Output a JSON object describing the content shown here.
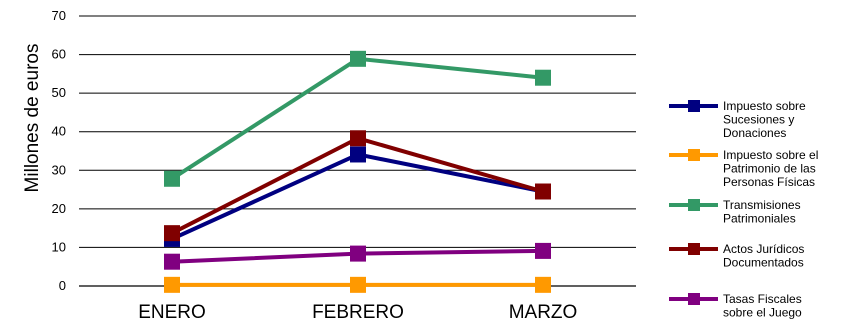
{
  "chart_data": {
    "type": "line",
    "title": "",
    "xlabel": "",
    "ylabel": "Millones de euros",
    "ylim": [
      0,
      70
    ],
    "yticks": [
      0,
      10,
      20,
      30,
      40,
      50,
      60,
      70
    ],
    "grid": "horizontal",
    "legend_position": "right",
    "categories": [
      "ENERO",
      "FEBRERO",
      "MARZO"
    ],
    "series": [
      {
        "name": "Impuesto sobre Sucesiones y Donaciones",
        "legend_lines": [
          "Impuesto sobre",
          "Sucesiones y",
          "Donaciones"
        ],
        "color": "#000080",
        "values": [
          12.2,
          34.1,
          24.5
        ]
      },
      {
        "name": "Impuesto sobre el Patrimonio de las Personas Físicas",
        "legend_lines": [
          "Impuesto sobre el",
          "Patrimonio de las",
          "Personas Físicas"
        ],
        "color": "#FF9900",
        "values": [
          0.3,
          0.3,
          0.3
        ]
      },
      {
        "name": "Transmisiones Patrimoniales",
        "legend_lines": [
          "Transmisiones",
          "Patrimoniales"
        ],
        "color": "#339966",
        "values": [
          27.8,
          58.9,
          54.0
        ]
      },
      {
        "name": "Actos Jurídicos Documentados",
        "legend_lines": [
          "Actos Jurídicos",
          "Documentados"
        ],
        "color": "#800000",
        "values": [
          13.7,
          38.3,
          24.5
        ]
      },
      {
        "name": "Tasas Fiscales sobre el Juego",
        "legend_lines": [
          "Tasas Fiscales",
          "sobre el Juego"
        ],
        "color": "#800080",
        "values": [
          6.3,
          8.4,
          9.1
        ]
      }
    ]
  }
}
